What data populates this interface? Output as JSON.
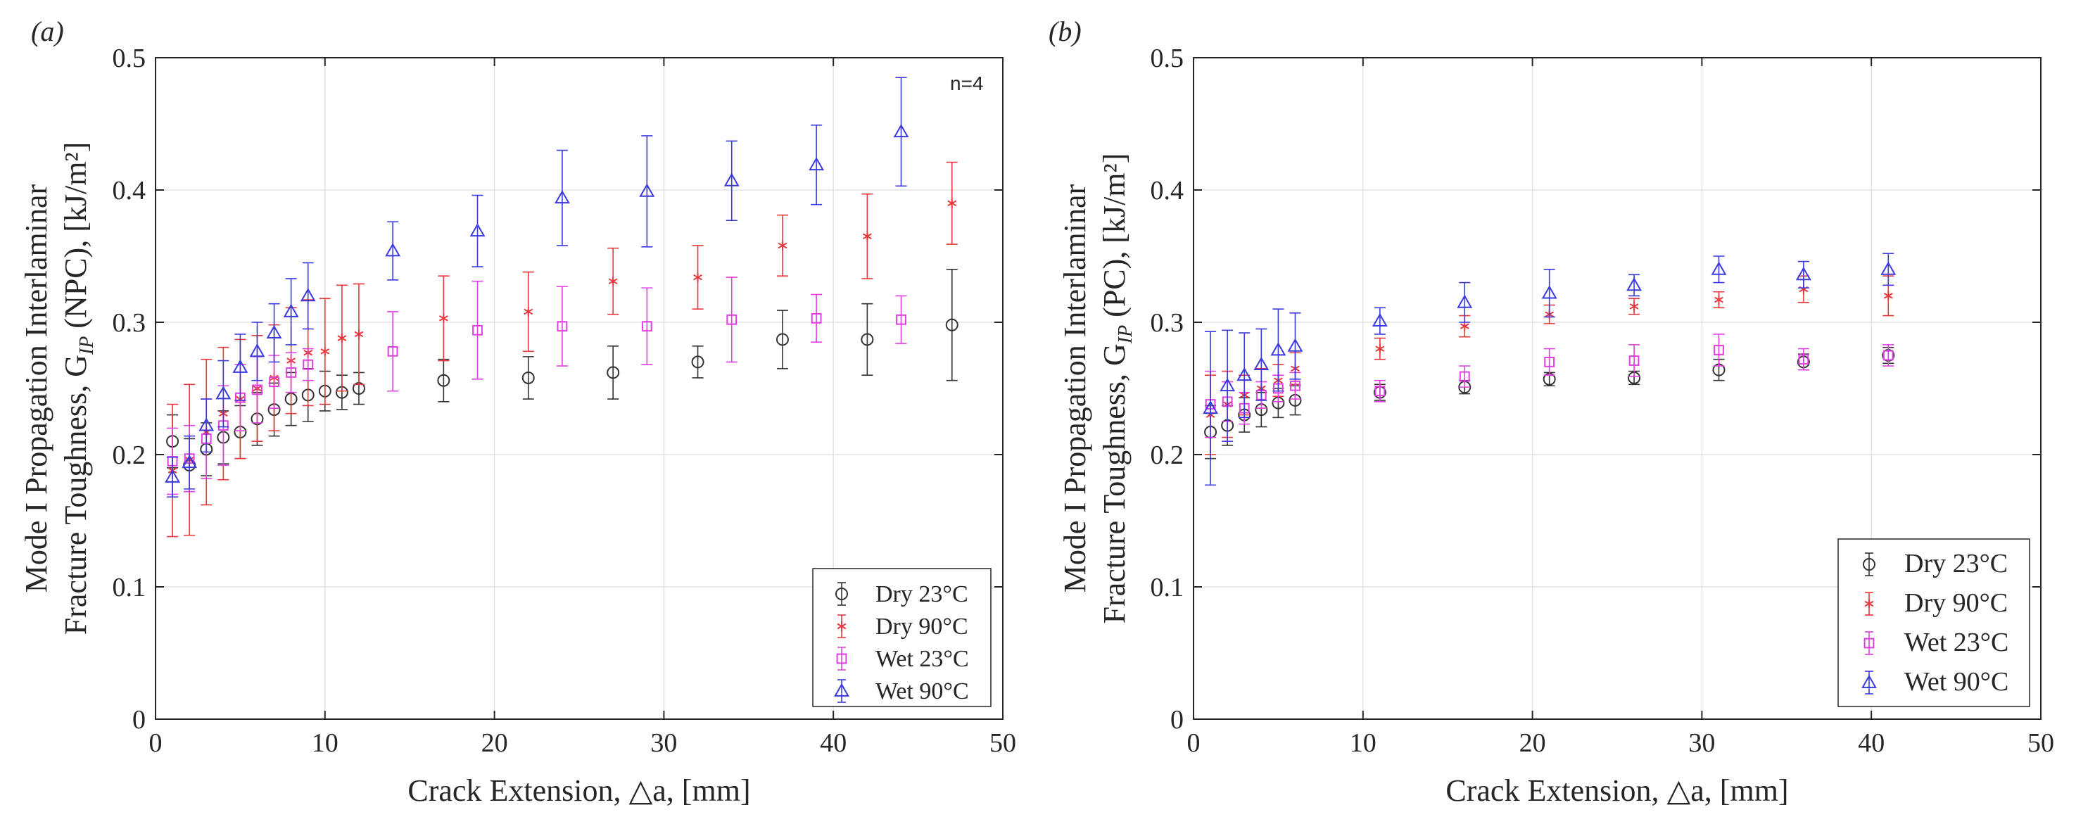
{
  "chart_data": [
    {
      "panel_label": "(a)",
      "type": "scatter",
      "xlabel": "Crack Extension, △a, [mm]",
      "ylabel_line1": "Mode I Propagation Interlaminar",
      "ylabel_line2": "Fracture Toughness, G",
      "ylabel_sub": "IP",
      "ylabel_tail": " (NPC), [kJ/m²]",
      "xlim": [
        0,
        50
      ],
      "ylim": [
        0,
        0.5
      ],
      "xticks": [
        "0",
        "10",
        "20",
        "30",
        "40",
        "50"
      ],
      "yticks": [
        "0",
        "0.1",
        "0.2",
        "0.3",
        "0.4",
        "0.5"
      ],
      "grid": true,
      "legend_position": "bottom-right",
      "annotation": "n=4",
      "series": [
        {
          "name": "Dry 23°C",
          "color": "#333333",
          "marker": "circle",
          "x": [
            1,
            2,
            3,
            4,
            5,
            6,
            7,
            8,
            9,
            10,
            11,
            12,
            17,
            22,
            27,
            32,
            37,
            42,
            47
          ],
          "y": [
            0.21,
            0.192,
            0.204,
            0.213,
            0.217,
            0.227,
            0.234,
            0.242,
            0.245,
            0.248,
            0.247,
            0.25,
            0.256,
            0.258,
            0.262,
            0.27,
            0.287,
            0.287,
            0.298
          ],
          "err": [
            0.02,
            0.02,
            0.02,
            0.02,
            0.02,
            0.02,
            0.02,
            0.02,
            0.02,
            0.015,
            0.013,
            0.012,
            0.016,
            0.016,
            0.02,
            0.012,
            0.022,
            0.027,
            0.042
          ]
        },
        {
          "name": "Dry 90°C",
          "color": "#e8383d",
          "marker": "asterisk",
          "x": [
            1,
            2,
            3,
            4,
            5,
            6,
            7,
            8,
            9,
            10,
            11,
            12,
            17,
            22,
            27,
            32,
            37,
            42,
            47
          ],
          "y": [
            0.188,
            0.196,
            0.217,
            0.231,
            0.242,
            0.25,
            0.258,
            0.271,
            0.277,
            0.278,
            0.288,
            0.291,
            0.303,
            0.308,
            0.331,
            0.334,
            0.358,
            0.365,
            0.39
          ],
          "err": [
            0.05,
            0.057,
            0.055,
            0.05,
            0.045,
            0.04,
            0.04,
            0.04,
            0.04,
            0.04,
            0.04,
            0.038,
            0.032,
            0.03,
            0.025,
            0.024,
            0.023,
            0.032,
            0.031
          ]
        },
        {
          "name": "Wet 23°C",
          "color": "#e040e0",
          "marker": "square",
          "x": [
            1,
            2,
            3,
            4,
            5,
            6,
            7,
            8,
            9,
            14,
            19,
            24,
            29,
            34,
            39,
            44
          ],
          "y": [
            0.195,
            0.197,
            0.212,
            0.222,
            0.243,
            0.249,
            0.255,
            0.262,
            0.268,
            0.278,
            0.294,
            0.297,
            0.297,
            0.302,
            0.303,
            0.302
          ],
          "err": [
            0.025,
            0.025,
            0.03,
            0.03,
            0.025,
            0.025,
            0.02,
            0.015,
            0.012,
            0.03,
            0.037,
            0.03,
            0.029,
            0.032,
            0.018,
            0.018
          ]
        },
        {
          "name": "Wet 90°C",
          "color": "#3a3ae0",
          "marker": "triangle",
          "x": [
            1,
            2,
            3,
            4,
            5,
            6,
            7,
            8,
            9,
            14,
            19,
            24,
            29,
            34,
            39,
            44
          ],
          "y": [
            0.183,
            0.194,
            0.222,
            0.246,
            0.266,
            0.278,
            0.292,
            0.308,
            0.32,
            0.354,
            0.369,
            0.394,
            0.399,
            0.407,
            0.419,
            0.444
          ],
          "err": [
            0.015,
            0.02,
            0.02,
            0.025,
            0.025,
            0.022,
            0.022,
            0.025,
            0.025,
            0.022,
            0.027,
            0.036,
            0.042,
            0.03,
            0.03,
            0.041
          ]
        }
      ]
    },
    {
      "panel_label": "(b)",
      "type": "scatter",
      "xlabel": "Crack Extension, △a, [mm]",
      "ylabel_line1": "Mode I Propagation Interlaminar",
      "ylabel_line2": "Fracture Toughness, G",
      "ylabel_sub": "IP",
      "ylabel_tail": " (PC), [kJ/m²]",
      "xlim": [
        0,
        50
      ],
      "ylim": [
        0,
        0.5
      ],
      "xticks": [
        "0",
        "10",
        "20",
        "30",
        "40",
        "50"
      ],
      "yticks": [
        "0",
        "0.1",
        "0.2",
        "0.3",
        "0.4",
        "0.5"
      ],
      "grid": true,
      "legend_position": "bottom-right",
      "series": [
        {
          "name": "Dry 23°C",
          "color": "#333333",
          "marker": "circle",
          "x": [
            1,
            2,
            3,
            4,
            5,
            6,
            11,
            16,
            21,
            26,
            31,
            36,
            41
          ],
          "y": [
            0.217,
            0.222,
            0.23,
            0.234,
            0.239,
            0.241,
            0.247,
            0.251,
            0.257,
            0.258,
            0.264,
            0.27,
            0.275
          ],
          "err": [
            0.02,
            0.015,
            0.013,
            0.013,
            0.011,
            0.011,
            0.006,
            0.005,
            0.005,
            0.005,
            0.008,
            0.006,
            0.006
          ]
        },
        {
          "name": "Dry 90°C",
          "color": "#e8383d",
          "marker": "asterisk",
          "x": [
            1,
            2,
            3,
            4,
            5,
            6,
            11,
            16,
            21,
            26,
            31,
            36,
            41
          ],
          "y": [
            0.23,
            0.238,
            0.245,
            0.25,
            0.256,
            0.265,
            0.28,
            0.297,
            0.306,
            0.312,
            0.317,
            0.325,
            0.32
          ],
          "err": [
            0.03,
            0.025,
            0.015,
            0.015,
            0.012,
            0.012,
            0.008,
            0.008,
            0.007,
            0.006,
            0.006,
            0.01,
            0.015
          ]
        },
        {
          "name": "Wet 23°C",
          "color": "#e040e0",
          "marker": "square",
          "x": [
            1,
            2,
            3,
            4,
            5,
            6,
            11,
            16,
            21,
            26,
            31,
            36,
            41
          ],
          "y": [
            0.238,
            0.24,
            0.235,
            0.245,
            0.25,
            0.252,
            0.248,
            0.259,
            0.27,
            0.271,
            0.279,
            0.272,
            0.275
          ],
          "err": [
            0.025,
            0.015,
            0.012,
            0.01,
            0.01,
            0.01,
            0.008,
            0.008,
            0.01,
            0.012,
            0.012,
            0.008,
            0.008
          ]
        },
        {
          "name": "Wet 90°C",
          "color": "#3a3ae0",
          "marker": "triangle",
          "x": [
            1,
            2,
            3,
            4,
            5,
            6,
            11,
            16,
            21,
            26,
            31,
            36,
            41
          ],
          "y": [
            0.235,
            0.252,
            0.26,
            0.268,
            0.279,
            0.282,
            0.301,
            0.315,
            0.322,
            0.328,
            0.34,
            0.336,
            0.34
          ],
          "err": [
            0.058,
            0.042,
            0.032,
            0.027,
            0.031,
            0.025,
            0.01,
            0.015,
            0.018,
            0.008,
            0.01,
            0.01,
            0.012
          ]
        }
      ]
    }
  ]
}
